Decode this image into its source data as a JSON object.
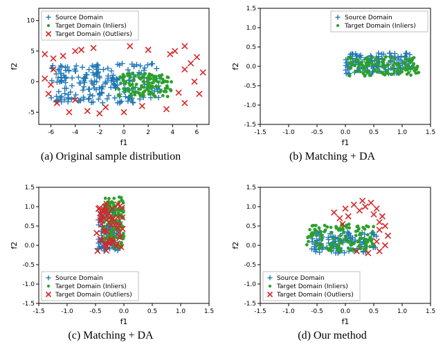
{
  "figure_bg": "#ffffff",
  "axis_color": "#000000",
  "font_family": "DejaVu Sans, Helvetica, Arial, sans-serif",
  "caption_font": "Georgia, Times New Roman, serif",
  "colors": {
    "source": "#1f77b4",
    "inlier": "#2ca02c",
    "outlier": "#d62728"
  },
  "markers": {
    "source": "plus",
    "inlier": "dot",
    "outlier": "x"
  },
  "marker_size": 4,
  "panels": [
    {
      "id": "a",
      "caption": "(a) Original sample distribution",
      "xlabel": "f1",
      "ylabel": "f2",
      "xlim": [
        -7,
        7
      ],
      "ylim": [
        -7,
        12
      ],
      "xticks": [
        -6,
        -4,
        -2,
        0,
        2,
        4,
        6
      ],
      "yticks": [
        -5,
        0,
        5,
        10
      ],
      "legend": {
        "pos": "upper-left",
        "items": [
          "source",
          "inlier",
          "outlier"
        ]
      },
      "series": {
        "source": {
          "n": 220,
          "xrange": [
            -6.0,
            3.0
          ],
          "yrange": [
            -3.5,
            3.0
          ],
          "seed": 11
        },
        "inlier": {
          "n": 120,
          "xrange": [
            -0.5,
            4.0
          ],
          "yrange": [
            -2.5,
            1.5
          ],
          "seed": 21
        },
        "outlier_pts": [
          [
            -6.5,
            4.5
          ],
          [
            -5.8,
            3.8
          ],
          [
            -4.0,
            5.0
          ],
          [
            -2.5,
            5.5
          ],
          [
            0.5,
            5.8
          ],
          [
            2.0,
            5.2
          ],
          [
            5.0,
            5.8
          ],
          [
            6.0,
            4.0
          ],
          [
            6.5,
            1.5
          ],
          [
            5.8,
            0.0
          ],
          [
            6.2,
            -2.0
          ],
          [
            5.0,
            -3.5
          ],
          [
            3.5,
            -4.5
          ],
          [
            1.5,
            -4.0
          ],
          [
            0.0,
            -5.0
          ],
          [
            -1.5,
            -4.2
          ],
          [
            -3.0,
            -4.8
          ],
          [
            -4.5,
            -5.0
          ],
          [
            -5.5,
            -3.5
          ],
          [
            -6.2,
            -2.0
          ],
          [
            -6.5,
            0.5
          ],
          [
            -5.0,
            4.2
          ],
          [
            -3.5,
            5.2
          ],
          [
            3.8,
            4.5
          ],
          [
            5.5,
            3.0
          ],
          [
            -5.8,
            2.0
          ],
          [
            4.5,
            -1.8
          ],
          [
            -6.0,
            -0.5
          ],
          [
            5.0,
            2.0
          ],
          [
            -2.0,
            -5.2
          ],
          [
            4.2,
            5.0
          ],
          [
            -4.0,
            -3.0
          ]
        ]
      }
    },
    {
      "id": "b",
      "caption": "(b) Matching + DA",
      "xlabel": "f1",
      "ylabel": "f2",
      "xlim": [
        -1.5,
        1.5
      ],
      "ylim": [
        -1.5,
        1.5
      ],
      "xticks": [
        -1.5,
        -1.0,
        -0.5,
        0.0,
        0.5,
        1.0,
        1.5
      ],
      "yticks": [
        -1.5,
        -1.0,
        -0.5,
        0.0,
        0.5,
        1.0,
        1.5
      ],
      "legend": {
        "pos": "upper-right",
        "items": [
          "source",
          "inlier"
        ]
      },
      "series": {
        "source": {
          "n": 130,
          "xrange": [
            0.0,
            1.2
          ],
          "yrange": [
            -0.2,
            0.35
          ],
          "seed": 31
        },
        "inlier": {
          "n": 130,
          "xrange": [
            0.05,
            1.3
          ],
          "yrange": [
            -0.25,
            0.25
          ],
          "seed": 41
        }
      }
    },
    {
      "id": "c",
      "caption": "(c) Matching + DA",
      "xlabel": "f1",
      "ylabel": "f2",
      "xlim": [
        -1.5,
        1.5
      ],
      "ylim": [
        -1.5,
        1.5
      ],
      "xticks": [
        -1.5,
        -1.0,
        -0.5,
        0.0,
        0.5,
        1.0,
        1.5
      ],
      "yticks": [
        -1.5,
        -1.0,
        -0.5,
        0.0,
        0.5,
        1.0,
        1.5
      ],
      "legend": {
        "pos": "lower-left",
        "items": [
          "source",
          "inlier",
          "outlier"
        ]
      },
      "series": {
        "source": {
          "n": 120,
          "xrange": [
            -0.45,
            -0.05
          ],
          "yrange": [
            -0.15,
            1.0
          ],
          "seed": 51
        },
        "inlier": {
          "n": 120,
          "xrange": [
            -0.35,
            0.0
          ],
          "yrange": [
            -0.1,
            1.25
          ],
          "seed": 61
        },
        "outlier": {
          "n": 55,
          "xrange": [
            -0.5,
            0.0
          ],
          "yrange": [
            -0.15,
            1.1
          ],
          "seed": 71
        }
      }
    },
    {
      "id": "d",
      "caption": "(d) Our method",
      "xlabel": "f1",
      "ylabel": "f2",
      "xlim": [
        -1.5,
        1.5
      ],
      "ylim": [
        -1.5,
        1.5
      ],
      "xticks": [
        -1.5,
        -1.0,
        -0.5,
        0.0,
        0.5,
        1.0,
        1.5
      ],
      "yticks": [
        -1.5,
        -1.0,
        -0.5,
        0.0,
        0.5,
        1.0,
        1.5
      ],
      "legend": {
        "pos": "lower-left",
        "items": [
          "source",
          "inlier",
          "outlier"
        ]
      },
      "series": {
        "source": {
          "n": 110,
          "xrange": [
            -0.6,
            0.55
          ],
          "yrange": [
            -0.2,
            0.35
          ],
          "seed": 81
        },
        "inlier": {
          "n": 120,
          "xrange": [
            -0.7,
            0.5
          ],
          "yrange": [
            -0.15,
            0.55
          ],
          "seed": 91
        },
        "outlier_pts": [
          [
            -0.2,
            0.85
          ],
          [
            0.0,
            0.95
          ],
          [
            0.15,
            1.05
          ],
          [
            0.3,
            1.15
          ],
          [
            0.45,
            1.1
          ],
          [
            0.55,
            0.95
          ],
          [
            0.65,
            0.75
          ],
          [
            0.7,
            0.5
          ],
          [
            0.75,
            0.25
          ],
          [
            0.7,
            0.0
          ],
          [
            0.6,
            -0.15
          ],
          [
            0.4,
            -0.2
          ],
          [
            0.05,
            0.75
          ],
          [
            0.25,
            0.9
          ],
          [
            0.5,
            0.8
          ],
          [
            -0.1,
            0.7
          ],
          [
            0.6,
            0.4
          ],
          [
            0.35,
            1.0
          ],
          [
            -0.05,
            0.55
          ],
          [
            0.55,
            0.1
          ],
          [
            0.2,
            -0.15
          ],
          [
            0.6,
            0.6
          ]
        ]
      }
    }
  ],
  "legend_labels": {
    "source": "Source Domain",
    "inlier": "Target Domain (Inliers)",
    "outlier": "Target Domain (Outliers)"
  },
  "captions": {
    "a": "(a) Original sample distribution",
    "b": "(b) Matching + DA",
    "c": "(c) Matching + DA",
    "d": "(d) Our method"
  }
}
